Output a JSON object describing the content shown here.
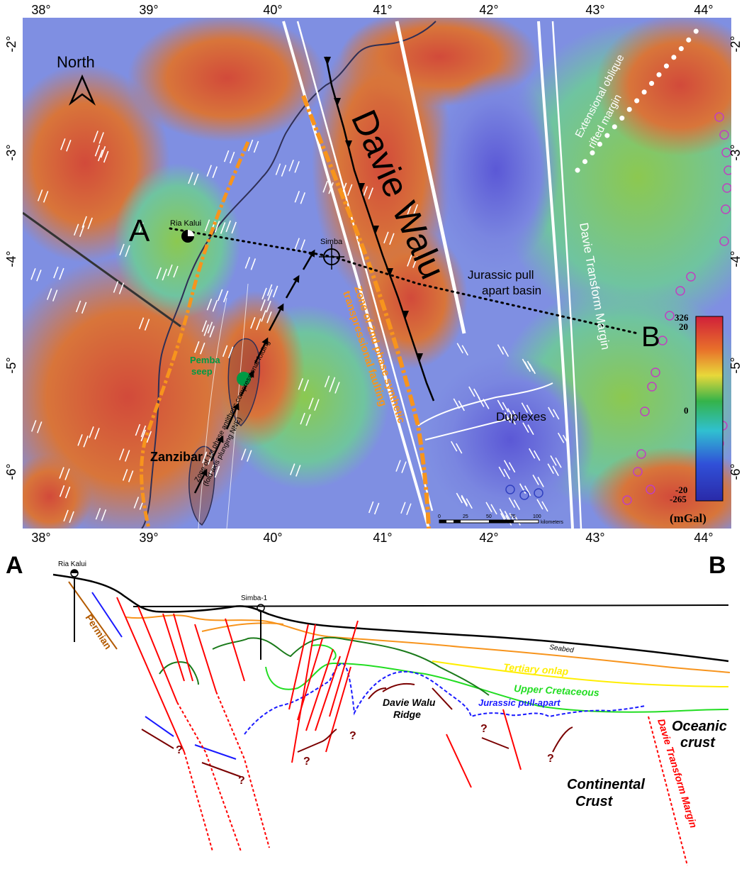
{
  "map": {
    "lon_labels": [
      "38°",
      "39°",
      "40°",
      "41°",
      "42°",
      "43°",
      "44°"
    ],
    "lat_labels": [
      "-2°",
      "-3°",
      "-4°",
      "-5°",
      "-6°"
    ],
    "north_label": "North",
    "title_label": "Davie Walu",
    "section_start": "A",
    "section_end": "B",
    "wells": {
      "ria_kalui": "Ria Kalui",
      "simba": "Simba"
    },
    "labels": {
      "extensional": "Extensional oblique",
      "rifted": "rifted margin",
      "jurassic_1": "Jurassic pull",
      "jurassic_2": "apart basin",
      "davie_transform": "Davie Transform Margin",
      "pemba_1": "Pemba",
      "pemba_2": "seep",
      "zanzibar": "Zanzibar",
      "duplexes": "Duplexes",
      "zone2_1": "Zone of 2nd phase synthetic",
      "zone2_2": "transpressional faulting",
      "zone1_1": "Zone of 1st phase antithetic compressional folding",
      "zone1_2": "(fold axis plunging NNE)"
    },
    "scale_bar": {
      "ticks": [
        "0",
        "25",
        "50",
        "75",
        "100"
      ],
      "unit": "kilometers"
    },
    "colorbar": {
      "labels_top": [
        "326",
        "20"
      ],
      "label_mid": "0",
      "labels_bottom": [
        "-20",
        "-265"
      ],
      "unit": "(mGal)"
    },
    "colors": {
      "fault_orange": "#f7941d",
      "fold_black": "#000000",
      "well_black": "#000000",
      "seep_green": "#009a44"
    }
  },
  "section": {
    "label_a": "A",
    "label_b": "B",
    "ria_kalui": "Ria Kalui",
    "simba_1": "Simba-1",
    "labels": {
      "permian": "Permian",
      "seabed": "Seabed",
      "tertiary_onlap": "Tertiary onlap",
      "upper_cretaceous": "Upper Cretaceous",
      "jurassic_pull_apart": "Jurassic pull-apart",
      "davie_walu_1": "Davie Walu",
      "davie_walu_2": "Ridge",
      "oceanic_1": "Oceanic",
      "oceanic_2": "crust",
      "continental_1": "Continental",
      "continental_2": "Crust",
      "davie_transform_margin": "Davie Transform Margin",
      "question": "?"
    },
    "colors": {
      "seabed": "#000000",
      "tertiary": "#f7941d",
      "tertiary_onlap": "#ffee00",
      "upper_cretaceous": "#22dd22",
      "cretaceous_dark": "#1a7a1a",
      "jurassic": "#1a1aff",
      "faults": "#ff0000",
      "permian": "#b35a00",
      "older": "#7a0000"
    }
  }
}
